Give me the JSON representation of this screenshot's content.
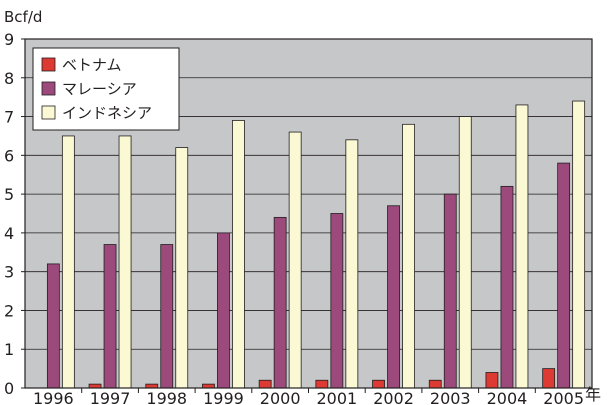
{
  "chart_data": {
    "type": "bar",
    "ylabel": "Bcf/d",
    "xunit": "年",
    "ylim": [
      0,
      9
    ],
    "yticks": [
      "0",
      "1",
      "2",
      "3",
      "4",
      "5",
      "6",
      "7",
      "8",
      "9"
    ],
    "categories": [
      "1996",
      "1997",
      "1998",
      "1999",
      "2000",
      "2001",
      "2002",
      "2003",
      "2004",
      "2005"
    ],
    "series": [
      {
        "name": "ベトナム",
        "color": "#dc3a32",
        "values": [
          0,
          0.1,
          0.1,
          0.1,
          0.2,
          0.2,
          0.2,
          0.2,
          0.4,
          0.5
        ]
      },
      {
        "name": "マレーシア",
        "color": "#9c4a7c",
        "values": [
          3.2,
          3.7,
          3.7,
          4.0,
          4.4,
          4.5,
          4.7,
          5.0,
          5.2,
          5.8
        ]
      },
      {
        "name": "インドネシア",
        "color": "#fbf9d4",
        "values": [
          6.5,
          6.5,
          6.2,
          6.9,
          6.6,
          6.4,
          6.8,
          7.0,
          7.3,
          7.4
        ]
      }
    ],
    "grid": true,
    "legend": "top-left",
    "colors": {
      "plot_background": "#c6c7c9",
      "gridline": "#231f20",
      "frame": "#231f20"
    }
  }
}
